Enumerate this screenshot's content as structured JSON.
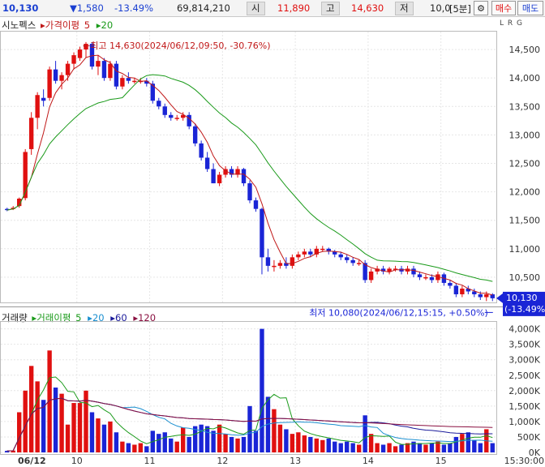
{
  "toolbar": {
    "price": "10,130",
    "change": "▼1,580",
    "change_pct": "-13.49%",
    "volume": "69,814,210",
    "open_label": "시",
    "open_value": "11,890",
    "high_label": "고",
    "high_value": "14,630",
    "low_label": "저",
    "interval_value": "10,0",
    "interval_unit": "[5분]",
    "buy_label": "매수",
    "sell_label": "매도"
  },
  "price_panel": {
    "stock_name": "시노펙스",
    "ma_label": "가격이평",
    "ma_periods": [
      "5",
      "20"
    ],
    "options": "L R G",
    "high_annotation": "←최고 14,630(2024/06/12,09:50, -30.76%)",
    "low_annotation": "최저 10,080(2024/06/12,15:15, +0.50%)",
    "current_price_tag": "10,130",
    "current_change_tag": "(-13.49%)",
    "y_ticks": [
      "14,500",
      "14,000",
      "13,500",
      "13,000",
      "12,500",
      "12,000",
      "11,500",
      "11,000",
      "10,500"
    ]
  },
  "volume_panel": {
    "title": "거래량",
    "ma_label": "거래이평",
    "ma_periods": [
      "5",
      "20",
      "60",
      "120"
    ],
    "options": "L",
    "y_ticks": [
      "4,000K",
      "3,500K",
      "3,000K",
      "2,500K",
      "2,000K",
      "1,500K",
      "1,000K",
      "500K",
      "0K"
    ]
  },
  "x_axis": {
    "labels": [
      "06/12",
      "10",
      "11",
      "12",
      "13",
      "14",
      "15",
      "15:30:00"
    ]
  },
  "colors": {
    "up": "#e01010",
    "down": "#1a25d6",
    "ma5": "#c01818",
    "ma20": "#1a9a1a",
    "vma20": "#1a8fd0",
    "vma60": "#1a1a9a",
    "vma120": "#8a1040"
  },
  "chart_data": {
    "type": "candlestick",
    "interval": "5분",
    "price_axis_range": [
      10100,
      14800
    ],
    "volume_axis_range": [
      0,
      4200
    ],
    "volume_unit": "K",
    "candles": [
      {
        "o": 11700,
        "h": 11720,
        "l": 11660,
        "c": 11680,
        "v": 50
      },
      {
        "o": 11700,
        "h": 11750,
        "l": 11680,
        "c": 11720,
        "v": 60
      },
      {
        "o": 11750,
        "h": 11900,
        "l": 11720,
        "c": 11880,
        "v": 1300
      },
      {
        "o": 11890,
        "h": 12750,
        "l": 11850,
        "c": 12700,
        "v": 2000
      },
      {
        "o": 12750,
        "h": 13400,
        "l": 12650,
        "c": 13300,
        "v": 2800
      },
      {
        "o": 13300,
        "h": 13750,
        "l": 13100,
        "c": 13700,
        "v": 2300
      },
      {
        "o": 13650,
        "h": 13800,
        "l": 13500,
        "c": 13600,
        "v": 1700
      },
      {
        "o": 13650,
        "h": 14200,
        "l": 13600,
        "c": 14150,
        "v": 3300
      },
      {
        "o": 14150,
        "h": 14300,
        "l": 13900,
        "c": 13950,
        "v": 2100
      },
      {
        "o": 13950,
        "h": 14100,
        "l": 13800,
        "c": 14050,
        "v": 1900
      },
      {
        "o": 14050,
        "h": 14300,
        "l": 13950,
        "c": 14250,
        "v": 900
      },
      {
        "o": 14250,
        "h": 14450,
        "l": 14150,
        "c": 14400,
        "v": 1600
      },
      {
        "o": 14350,
        "h": 14550,
        "l": 14300,
        "c": 14500,
        "v": 1600
      },
      {
        "o": 14500,
        "h": 14630,
        "l": 14350,
        "c": 14600,
        "v": 2000
      },
      {
        "o": 14600,
        "h": 14630,
        "l": 14150,
        "c": 14200,
        "v": 1300
      },
      {
        "o": 14200,
        "h": 14400,
        "l": 14050,
        "c": 14300,
        "v": 1100
      },
      {
        "o": 14300,
        "h": 14350,
        "l": 13950,
        "c": 14000,
        "v": 900
      },
      {
        "o": 14000,
        "h": 14300,
        "l": 13950,
        "c": 14250,
        "v": 1000
      },
      {
        "o": 14250,
        "h": 14300,
        "l": 13800,
        "c": 13850,
        "v": 650
      },
      {
        "o": 13850,
        "h": 14050,
        "l": 13800,
        "c": 14000,
        "v": 350
      },
      {
        "o": 14000,
        "h": 14100,
        "l": 13900,
        "c": 13950,
        "v": 300
      },
      {
        "o": 13950,
        "h": 14000,
        "l": 13900,
        "c": 13950,
        "v": 250
      },
      {
        "o": 13950,
        "h": 14000,
        "l": 13900,
        "c": 13950,
        "v": 300
      },
      {
        "o": 13950,
        "h": 14000,
        "l": 13850,
        "c": 13900,
        "v": 200
      },
      {
        "o": 13900,
        "h": 13950,
        "l": 13550,
        "c": 13600,
        "v": 700
      },
      {
        "o": 13600,
        "h": 13650,
        "l": 13450,
        "c": 13500,
        "v": 600
      },
      {
        "o": 13500,
        "h": 13550,
        "l": 13300,
        "c": 13350,
        "v": 650
      },
      {
        "o": 13350,
        "h": 13400,
        "l": 13250,
        "c": 13300,
        "v": 450
      },
      {
        "o": 13300,
        "h": 13350,
        "l": 13250,
        "c": 13300,
        "v": 350
      },
      {
        "o": 13300,
        "h": 13400,
        "l": 13250,
        "c": 13350,
        "v": 800
      },
      {
        "o": 13350,
        "h": 13400,
        "l": 13100,
        "c": 13150,
        "v": 500
      },
      {
        "o": 13150,
        "h": 13200,
        "l": 12800,
        "c": 12850,
        "v": 850
      },
      {
        "o": 12850,
        "h": 12900,
        "l": 12550,
        "c": 12600,
        "v": 900
      },
      {
        "o": 12600,
        "h": 12700,
        "l": 12350,
        "c": 12400,
        "v": 850
      },
      {
        "o": 12400,
        "h": 12500,
        "l": 12150,
        "c": 12150,
        "v": 700
      },
      {
        "o": 12150,
        "h": 12350,
        "l": 12100,
        "c": 12300,
        "v": 900
      },
      {
        "o": 12300,
        "h": 12450,
        "l": 12250,
        "c": 12400,
        "v": 600
      },
      {
        "o": 12400,
        "h": 12450,
        "l": 12250,
        "c": 12300,
        "v": 500
      },
      {
        "o": 12300,
        "h": 12450,
        "l": 12250,
        "c": 12400,
        "v": 450
      },
      {
        "o": 12400,
        "h": 12420,
        "l": 12100,
        "c": 12150,
        "v": 500
      },
      {
        "o": 12150,
        "h": 12200,
        "l": 11800,
        "c": 11850,
        "v": 1500
      },
      {
        "o": 11850,
        "h": 11900,
        "l": 11650,
        "c": 11700,
        "v": 700
      },
      {
        "o": 11700,
        "h": 11720,
        "l": 10550,
        "c": 10850,
        "v": 4000
      },
      {
        "o": 10850,
        "h": 11000,
        "l": 10600,
        "c": 10700,
        "v": 1800
      },
      {
        "o": 10700,
        "h": 10800,
        "l": 10600,
        "c": 10700,
        "v": 1400
      },
      {
        "o": 10700,
        "h": 10800,
        "l": 10650,
        "c": 10750,
        "v": 900
      },
      {
        "o": 10750,
        "h": 10850,
        "l": 10650,
        "c": 10700,
        "v": 750
      },
      {
        "o": 10700,
        "h": 10900,
        "l": 10650,
        "c": 10850,
        "v": 600
      },
      {
        "o": 10850,
        "h": 10950,
        "l": 10800,
        "c": 10900,
        "v": 650
      },
      {
        "o": 10900,
        "h": 11000,
        "l": 10850,
        "c": 10950,
        "v": 550
      },
      {
        "o": 10950,
        "h": 11000,
        "l": 10850,
        "c": 10900,
        "v": 500
      },
      {
        "o": 10900,
        "h": 11050,
        "l": 10850,
        "c": 11000,
        "v": 450
      },
      {
        "o": 11000,
        "h": 11050,
        "l": 10950,
        "c": 11000,
        "v": 400
      },
      {
        "o": 11000,
        "h": 11020,
        "l": 10900,
        "c": 10950,
        "v": 450
      },
      {
        "o": 10950,
        "h": 10980,
        "l": 10850,
        "c": 10900,
        "v": 350
      },
      {
        "o": 10900,
        "h": 10950,
        "l": 10800,
        "c": 10850,
        "v": 300
      },
      {
        "o": 10850,
        "h": 10900,
        "l": 10750,
        "c": 10800,
        "v": 350
      },
      {
        "o": 10800,
        "h": 10850,
        "l": 10700,
        "c": 10750,
        "v": 300
      },
      {
        "o": 10750,
        "h": 10800,
        "l": 10700,
        "c": 10750,
        "v": 250
      },
      {
        "o": 10750,
        "h": 10800,
        "l": 10400,
        "c": 10450,
        "v": 1200
      },
      {
        "o": 10450,
        "h": 10650,
        "l": 10400,
        "c": 10600,
        "v": 600
      },
      {
        "o": 10600,
        "h": 10700,
        "l": 10550,
        "c": 10650,
        "v": 300
      },
      {
        "o": 10650,
        "h": 10700,
        "l": 10550,
        "c": 10600,
        "v": 250
      },
      {
        "o": 10600,
        "h": 10680,
        "l": 10550,
        "c": 10650,
        "v": 300
      },
      {
        "o": 10650,
        "h": 10700,
        "l": 10600,
        "c": 10650,
        "v": 200
      },
      {
        "o": 10650,
        "h": 10700,
        "l": 10550,
        "c": 10600,
        "v": 250
      },
      {
        "o": 10600,
        "h": 10700,
        "l": 10550,
        "c": 10650,
        "v": 300
      },
      {
        "o": 10650,
        "h": 10700,
        "l": 10500,
        "c": 10550,
        "v": 350
      },
      {
        "o": 10550,
        "h": 10600,
        "l": 10450,
        "c": 10500,
        "v": 300
      },
      {
        "o": 10500,
        "h": 10550,
        "l": 10450,
        "c": 10500,
        "v": 250
      },
      {
        "o": 10500,
        "h": 10550,
        "l": 10400,
        "c": 10450,
        "v": 300
      },
      {
        "o": 10450,
        "h": 10600,
        "l": 10400,
        "c": 10550,
        "v": 350
      },
      {
        "o": 10550,
        "h": 10580,
        "l": 10350,
        "c": 10400,
        "v": 250
      },
      {
        "o": 10400,
        "h": 10450,
        "l": 10300,
        "c": 10350,
        "v": 300
      },
      {
        "o": 10350,
        "h": 10400,
        "l": 10150,
        "c": 10200,
        "v": 500
      },
      {
        "o": 10200,
        "h": 10350,
        "l": 10150,
        "c": 10300,
        "v": 600
      },
      {
        "o": 10300,
        "h": 10350,
        "l": 10200,
        "c": 10250,
        "v": 650
      },
      {
        "o": 10250,
        "h": 10300,
        "l": 10150,
        "c": 10200,
        "v": 400
      },
      {
        "o": 10200,
        "h": 10250,
        "l": 10100,
        "c": 10150,
        "v": 300
      },
      {
        "o": 10150,
        "h": 10250,
        "l": 10080,
        "c": 10200,
        "v": 750
      },
      {
        "o": 10200,
        "h": 10220,
        "l": 10080,
        "c": 10130,
        "v": 300
      }
    ]
  }
}
